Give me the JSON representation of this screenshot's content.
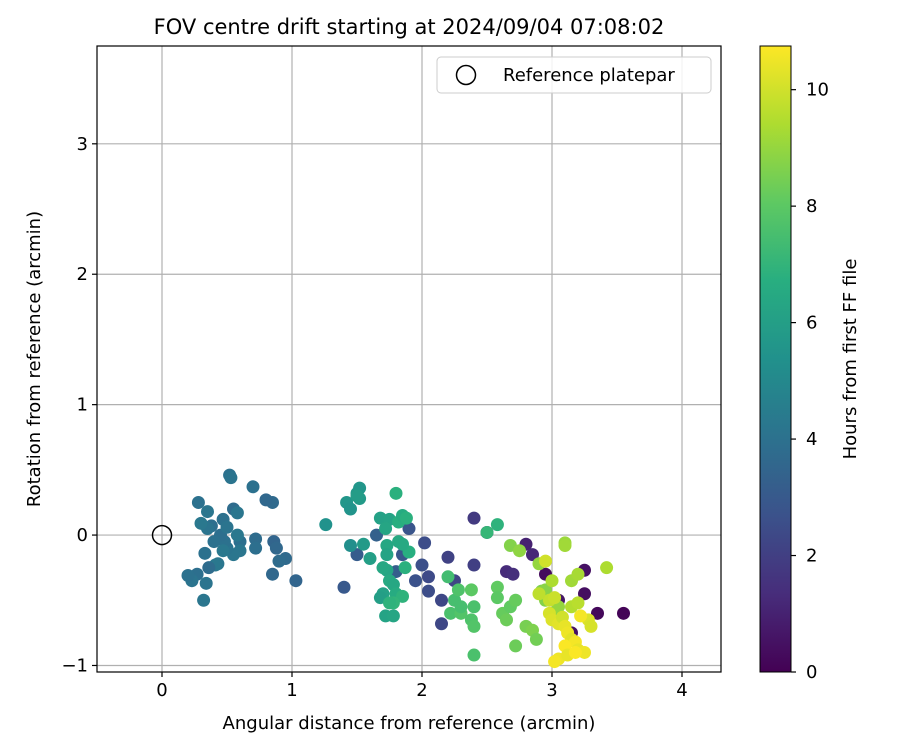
{
  "chart_data": {
    "type": "scatter",
    "title": "FOV centre drift starting at 2024/09/04 07:08:02",
    "xlabel": "Angular distance from reference (arcmin)",
    "ylabel": "Rotation from reference (arcmin)",
    "xlim": [
      -0.5,
      4.3
    ],
    "ylim": [
      -1.05,
      3.75
    ],
    "xticks": [
      0,
      1,
      2,
      3,
      4
    ],
    "yticks": [
      -1,
      0,
      1,
      2,
      3
    ],
    "grid": true,
    "legend_position": "top-right",
    "reference": {
      "label": "Reference platepar",
      "x": 0,
      "y": 0
    },
    "colorbar": {
      "label": "Hours from first FF file",
      "colormap": "viridis",
      "range": [
        0,
        10.75
      ],
      "ticks": [
        0,
        2,
        4,
        6,
        8,
        10
      ]
    },
    "points": [
      [
        2.95,
        -0.3,
        0.3
      ],
      [
        3.05,
        -0.5,
        0.6
      ],
      [
        3.25,
        -0.27,
        0.5
      ],
      [
        3.25,
        -0.45,
        0.4
      ],
      [
        3.35,
        -0.6,
        0.2
      ],
      [
        3.55,
        -0.6,
        0.1
      ],
      [
        3.15,
        -0.75,
        0.5
      ],
      [
        2.8,
        -0.07,
        1.0
      ],
      [
        2.85,
        -0.15,
        1.2
      ],
      [
        2.65,
        -0.28,
        1.3
      ],
      [
        2.7,
        -0.3,
        1.4
      ],
      [
        2.5,
        0.02,
        1.6
      ],
      [
        2.4,
        0.13,
        1.8
      ],
      [
        2.4,
        -0.23,
        2.0
      ],
      [
        2.2,
        -0.17,
        2.1
      ],
      [
        2.25,
        -0.35,
        2.2
      ],
      [
        2.15,
        -0.5,
        2.3
      ],
      [
        2.05,
        -0.32,
        2.4
      ],
      [
        2.05,
        -0.43,
        2.5
      ],
      [
        2.0,
        -0.23,
        2.6
      ],
      [
        1.95,
        -0.35,
        2.7
      ],
      [
        1.9,
        0.05,
        2.8
      ],
      [
        1.85,
        -0.15,
        2.9
      ],
      [
        2.15,
        -0.68,
        2.3
      ],
      [
        2.02,
        -0.06,
        2.5
      ],
      [
        1.4,
        -0.4,
        3.0
      ],
      [
        1.5,
        -0.15,
        3.1
      ],
      [
        1.8,
        -0.28,
        3.2
      ],
      [
        1.65,
        0.0,
        3.3
      ],
      [
        1.03,
        -0.35,
        3.5
      ],
      [
        0.85,
        -0.3,
        3.6
      ],
      [
        0.95,
        -0.18,
        3.7
      ],
      [
        0.9,
        -0.2,
        3.8
      ],
      [
        0.85,
        0.25,
        3.7
      ],
      [
        0.8,
        0.27,
        3.6
      ],
      [
        0.86,
        -0.05,
        3.5
      ],
      [
        0.88,
        -0.1,
        3.6
      ],
      [
        0.72,
        -0.03,
        3.8
      ],
      [
        0.72,
        -0.1,
        3.9
      ],
      [
        0.7,
        0.37,
        4.0
      ],
      [
        0.6,
        -0.05,
        3.9
      ],
      [
        0.55,
        0.2,
        3.8
      ],
      [
        0.52,
        0.46,
        4.0
      ],
      [
        0.53,
        0.44,
        4.1
      ],
      [
        0.58,
        0.17,
        4.2
      ],
      [
        0.58,
        0.0,
        4.3
      ],
      [
        0.55,
        -0.15,
        4.2
      ],
      [
        0.5,
        -0.1,
        4.1
      ],
      [
        0.48,
        -0.05,
        4.0
      ],
      [
        0.45,
        0.0,
        3.9
      ],
      [
        0.47,
        0.12,
        4.0
      ],
      [
        0.5,
        0.06,
        4.1
      ],
      [
        0.43,
        -0.22,
        4.2
      ],
      [
        0.41,
        -0.23,
        4.3
      ],
      [
        0.4,
        -0.05,
        4.0
      ],
      [
        0.38,
        0.07,
        3.9
      ],
      [
        0.35,
        0.05,
        4.1
      ],
      [
        0.35,
        0.18,
        4.2
      ],
      [
        0.33,
        -0.14,
        4.0
      ],
      [
        0.36,
        -0.25,
        3.8
      ],
      [
        0.34,
        -0.37,
        4.1
      ],
      [
        0.32,
        -0.5,
        4.2
      ],
      [
        0.3,
        0.09,
        4.3
      ],
      [
        0.28,
        0.25,
        4.0
      ],
      [
        0.27,
        -0.3,
        3.9
      ],
      [
        0.23,
        -0.35,
        4.1
      ],
      [
        0.2,
        -0.31,
        4.0
      ],
      [
        0.6,
        -0.12,
        4.2
      ],
      [
        0.47,
        -0.12,
        4.3
      ],
      [
        1.26,
        0.08,
        5.4
      ],
      [
        1.42,
        0.25,
        5.6
      ],
      [
        1.45,
        0.2,
        5.5
      ],
      [
        1.45,
        -0.08,
        5.3
      ],
      [
        1.5,
        0.32,
        5.7
      ],
      [
        1.52,
        0.36,
        5.6
      ],
      [
        1.52,
        0.28,
        5.8
      ],
      [
        1.5,
        0.3,
        5.9
      ],
      [
        1.55,
        -0.07,
        5.8
      ],
      [
        1.6,
        -0.18,
        6.0
      ],
      [
        1.68,
        0.13,
        6.1
      ],
      [
        1.75,
        0.12,
        6.2
      ],
      [
        1.72,
        0.05,
        6.3
      ],
      [
        1.73,
        -0.08,
        6.4
      ],
      [
        1.73,
        -0.15,
        6.2
      ],
      [
        1.73,
        -0.27,
        6.3
      ],
      [
        1.7,
        -0.45,
        6.1
      ],
      [
        1.68,
        -0.48,
        6.0
      ],
      [
        1.72,
        -0.62,
        6.2
      ],
      [
        1.78,
        -0.62,
        6.3
      ],
      [
        1.75,
        -0.35,
        6.5
      ],
      [
        1.78,
        -0.38,
        6.4
      ],
      [
        1.8,
        -0.45,
        6.6
      ],
      [
        1.82,
        -0.05,
        6.5
      ],
      [
        1.82,
        0.1,
        6.7
      ],
      [
        1.85,
        0.15,
        6.6
      ],
      [
        1.88,
        0.13,
        6.8
      ],
      [
        1.9,
        -0.13,
        6.7
      ],
      [
        1.87,
        -0.25,
        6.8
      ],
      [
        1.85,
        -0.47,
        6.9
      ],
      [
        1.78,
        -0.52,
        7.0
      ],
      [
        1.75,
        -0.52,
        6.9
      ],
      [
        1.8,
        0.32,
        6.8
      ],
      [
        1.85,
        -0.07,
        6.5
      ],
      [
        1.7,
        -0.25,
        6.4
      ],
      [
        2.58,
        0.08,
        6.9
      ],
      [
        2.5,
        0.02,
        7.1
      ],
      [
        2.2,
        -0.32,
        7.4
      ],
      [
        2.25,
        -0.5,
        7.5
      ],
      [
        2.22,
        -0.6,
        7.6
      ],
      [
        2.28,
        -0.42,
        7.7
      ],
      [
        2.3,
        -0.6,
        7.8
      ],
      [
        2.3,
        -0.55,
        7.5
      ],
      [
        2.4,
        -0.55,
        7.6
      ],
      [
        2.38,
        -0.65,
        7.7
      ],
      [
        2.4,
        -0.7,
        7.8
      ],
      [
        2.4,
        -0.92,
        7.6
      ],
      [
        2.38,
        -0.42,
        8.0
      ],
      [
        2.58,
        -0.4,
        8.1
      ],
      [
        2.58,
        -0.48,
        8.0
      ],
      [
        2.62,
        -0.6,
        8.2
      ],
      [
        2.65,
        -0.65,
        8.3
      ],
      [
        2.68,
        -0.55,
        8.1
      ],
      [
        2.72,
        -0.5,
        8.2
      ],
      [
        2.72,
        -0.85,
        8.3
      ],
      [
        2.8,
        -0.7,
        8.5
      ],
      [
        2.85,
        -0.73,
        8.6
      ],
      [
        2.88,
        -0.8,
        8.4
      ],
      [
        2.92,
        -0.43,
        8.6
      ],
      [
        2.95,
        -0.42,
        8.8
      ],
      [
        2.95,
        -0.5,
        8.7
      ],
      [
        3.0,
        -0.6,
        8.9
      ],
      [
        3.05,
        -0.55,
        9.0
      ],
      [
        2.68,
        -0.08,
        8.7
      ],
      [
        2.75,
        -0.12,
        8.9
      ],
      [
        2.9,
        -0.22,
        9.0
      ],
      [
        3.1,
        -0.06,
        9.1
      ],
      [
        3.1,
        -0.08,
        9.2
      ],
      [
        3.15,
        -0.35,
        9.2
      ],
      [
        3.2,
        -0.3,
        9.3
      ],
      [
        3.42,
        -0.25,
        9.4
      ],
      [
        3.15,
        -0.55,
        9.5
      ],
      [
        3.2,
        -0.52,
        9.6
      ],
      [
        3.0,
        -0.35,
        9.4
      ],
      [
        2.95,
        -0.2,
        10.0
      ],
      [
        2.98,
        -0.6,
        10.1
      ],
      [
        3.0,
        -0.65,
        10.2
      ],
      [
        3.05,
        -0.68,
        10.3
      ],
      [
        3.08,
        -0.63,
        10.0
      ],
      [
        3.1,
        -0.7,
        10.4
      ],
      [
        3.12,
        -0.75,
        10.5
      ],
      [
        3.15,
        -0.8,
        10.3
      ],
      [
        3.18,
        -0.82,
        10.6
      ],
      [
        3.2,
        -0.88,
        10.4
      ],
      [
        3.25,
        -0.9,
        10.5
      ],
      [
        3.28,
        -0.65,
        10.2
      ],
      [
        3.3,
        -0.7,
        10.1
      ],
      [
        3.22,
        -0.62,
        10.6
      ],
      [
        3.1,
        -0.85,
        10.7
      ],
      [
        3.05,
        -0.95,
        10.5
      ],
      [
        3.02,
        -0.97,
        10.6
      ],
      [
        3.12,
        -0.92,
        10.4
      ],
      [
        3.18,
        -0.9,
        10.7
      ],
      [
        2.98,
        -0.5,
        9.8
      ],
      [
        3.02,
        -0.48,
        9.9
      ],
      [
        2.9,
        -0.45,
        9.7
      ]
    ]
  }
}
